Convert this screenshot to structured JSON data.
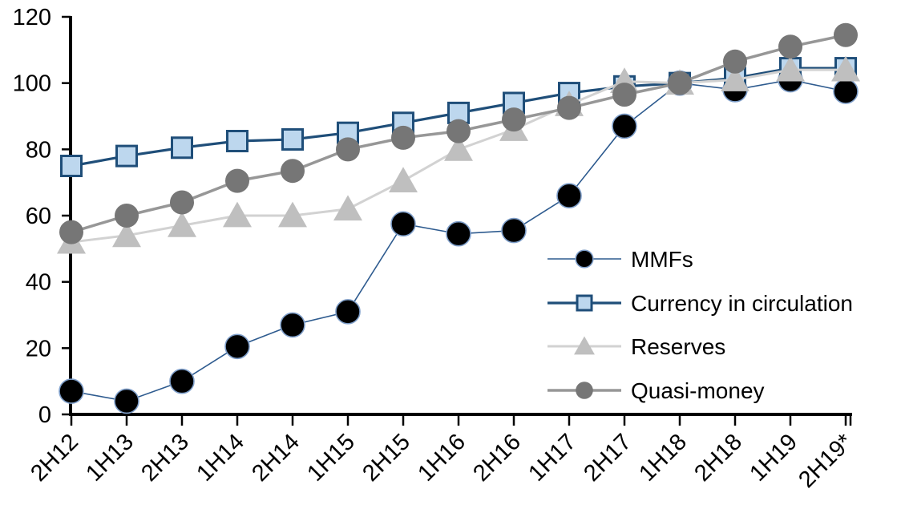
{
  "chart_data": {
    "type": "line",
    "title": "",
    "xlabel": "",
    "ylabel": "",
    "grid": false,
    "legend_position": "inside-right",
    "x_label_rotation": -45,
    "ylim": [
      0,
      120
    ],
    "yticks": [
      0,
      20,
      40,
      60,
      80,
      100,
      120
    ],
    "categories": [
      "2H12",
      "1H13",
      "2H13",
      "1H14",
      "2H14",
      "1H15",
      "2H15",
      "1H16",
      "2H16",
      "1H17",
      "2H17",
      "1H18",
      "2H18",
      "1H19",
      "2H19*"
    ],
    "series": [
      {
        "name": "MMFs",
        "marker": "circle",
        "marker_color": "#000000",
        "marker_stroke": "#7E9EC9",
        "line_color": "#2E5B8F",
        "line_width": 1.6,
        "marker_size": 30,
        "values": [
          7,
          4,
          10,
          20.5,
          27,
          31,
          57.5,
          54.5,
          55.5,
          66,
          87,
          100,
          98,
          101,
          97.5
        ]
      },
      {
        "name": "Currency in circulation",
        "marker": "square",
        "marker_color": "#BDD7EE",
        "marker_stroke": "#1F4E79",
        "line_color": "#1F4E79",
        "line_width": 3.2,
        "marker_size": 25,
        "values": [
          75,
          78,
          80.5,
          82.5,
          83,
          85,
          88,
          91,
          94,
          97,
          99,
          100,
          101.5,
          104.5,
          104.5
        ]
      },
      {
        "name": "Reserves",
        "marker": "triangle",
        "marker_color": "#BFBFBF",
        "marker_stroke": "none",
        "line_color": "#D2D2D2",
        "line_width": 3,
        "marker_size": 30,
        "values": [
          52,
          54,
          57,
          60,
          60,
          62,
          70.5,
          80,
          86,
          93.5,
          100.5,
          100,
          101,
          104,
          104
        ]
      },
      {
        "name": "Quasi-money",
        "marker": "circle",
        "marker_color": "#767676",
        "marker_stroke": "none",
        "line_color": "#979797",
        "line_width": 3.5,
        "marker_size": 30,
        "values": [
          55,
          60,
          64,
          70.5,
          73.5,
          80,
          83.5,
          85.5,
          89,
          92.5,
          96.5,
          100,
          106.5,
          111,
          114.5
        ]
      }
    ],
    "axis_color": "#000000"
  }
}
